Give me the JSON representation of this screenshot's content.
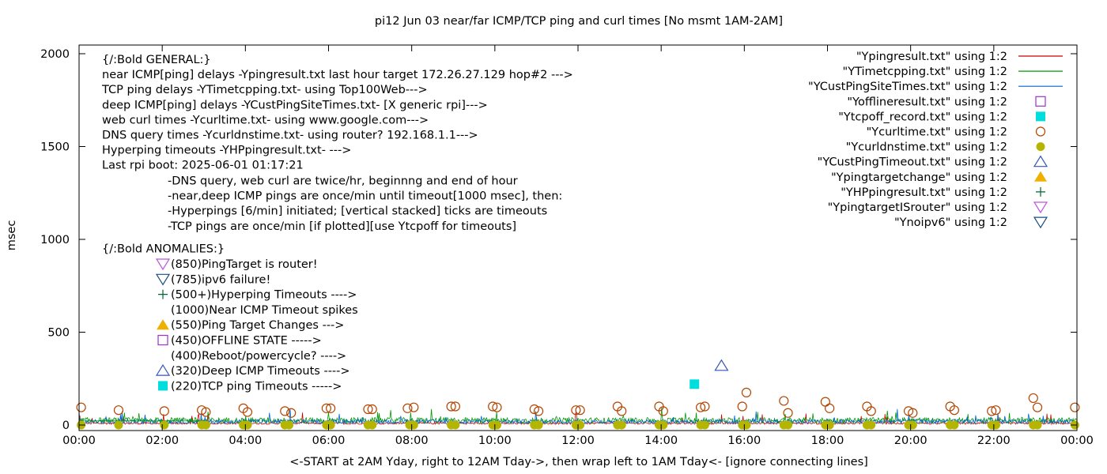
{
  "chart_data": {
    "type": "line",
    "title": "pi12 Jun 03  near/far ICMP/TCP ping and curl times [No msmt 1AM-2AM]",
    "xlabel": "<-START at 2AM Yday, right to 12AM Tday->, then wrap left to 1AM Tday<- [ignore connecting lines]",
    "ylabel": "msec",
    "xlim": [
      0,
      24
    ],
    "ylim": [
      0,
      2060
    ],
    "x_ticks": [
      "00:00",
      "02:00",
      "04:00",
      "06:00",
      "08:00",
      "10:00",
      "12:00",
      "14:00",
      "16:00",
      "18:00",
      "20:00",
      "22:00",
      "00:00"
    ],
    "y_ticks": [
      "0",
      "500",
      "1000",
      "1500",
      "2000"
    ],
    "legend_position": "top-right",
    "series": [
      {
        "name": "\"Ypingresult.txt\" using 1:2",
        "style": "line",
        "color": "#cc0000"
      },
      {
        "name": "\"YTimetcpping.txt\" using 1:2",
        "style": "line",
        "color": "#009900"
      },
      {
        "name": "\"YCustPingSiteTimes.txt\" using 1:2",
        "style": "line",
        "color": "#0066cc"
      },
      {
        "name": "\"Yofflineresult.txt\" using 1:2",
        "style": "open-square",
        "color": "#9933cc",
        "points": []
      },
      {
        "name": "\"Ytcpoff_record.txt\" using 1:2",
        "style": "filled-square",
        "color": "#00dddd",
        "points": [
          [
            14.8,
            220
          ]
        ]
      },
      {
        "name": "\"Ycurltime.txt\" using 1:2",
        "style": "open-circle",
        "color": "#b34400",
        "points": [
          [
            0.05,
            95
          ],
          [
            0.95,
            80
          ],
          [
            2.05,
            75
          ],
          [
            2.95,
            80
          ],
          [
            3.05,
            70
          ],
          [
            3.95,
            90
          ],
          [
            4.05,
            70
          ],
          [
            4.95,
            75
          ],
          [
            5.1,
            65
          ],
          [
            5.95,
            90
          ],
          [
            6.05,
            90
          ],
          [
            6.95,
            85
          ],
          [
            7.05,
            85
          ],
          [
            7.9,
            90
          ],
          [
            8.05,
            95
          ],
          [
            8.95,
            100
          ],
          [
            9.05,
            100
          ],
          [
            9.95,
            100
          ],
          [
            10.05,
            95
          ],
          [
            10.95,
            85
          ],
          [
            11.05,
            75
          ],
          [
            11.95,
            80
          ],
          [
            12.05,
            80
          ],
          [
            12.95,
            100
          ],
          [
            13.05,
            75
          ],
          [
            13.95,
            100
          ],
          [
            14.05,
            75
          ],
          [
            14.95,
            95
          ],
          [
            15.05,
            100
          ],
          [
            15.95,
            100
          ],
          [
            16.05,
            175
          ],
          [
            16.95,
            130
          ],
          [
            17.05,
            65
          ],
          [
            17.95,
            125
          ],
          [
            18.05,
            90
          ],
          [
            18.95,
            100
          ],
          [
            19.05,
            75
          ],
          [
            19.95,
            75
          ],
          [
            20.05,
            65
          ],
          [
            20.95,
            100
          ],
          [
            21.05,
            80
          ],
          [
            21.95,
            75
          ],
          [
            22.05,
            80
          ],
          [
            22.95,
            145
          ],
          [
            23.05,
            95
          ],
          [
            23.95,
            95
          ]
        ]
      },
      {
        "name": "\"Ycurldnstime.txt\" using 1:2",
        "style": "filled-circle",
        "color": "#b5b500",
        "points": [
          [
            0.05,
            0
          ],
          [
            0.95,
            0
          ],
          [
            2.05,
            0
          ],
          [
            2.95,
            0
          ],
          [
            3.05,
            0
          ],
          [
            3.95,
            0
          ],
          [
            4.05,
            0
          ],
          [
            4.95,
            0
          ],
          [
            5.05,
            0
          ],
          [
            5.95,
            0
          ],
          [
            6.05,
            0
          ],
          [
            6.95,
            0
          ],
          [
            7.05,
            0
          ],
          [
            7.95,
            0
          ],
          [
            8.05,
            0
          ],
          [
            8.95,
            0
          ],
          [
            9.05,
            0
          ],
          [
            9.95,
            0
          ],
          [
            10.05,
            0
          ],
          [
            10.95,
            0
          ],
          [
            11.05,
            0
          ],
          [
            11.95,
            0
          ],
          [
            12.05,
            0
          ],
          [
            12.95,
            0
          ],
          [
            13.05,
            0
          ],
          [
            13.95,
            0
          ],
          [
            14.05,
            0
          ],
          [
            14.95,
            0
          ],
          [
            15.05,
            0
          ],
          [
            15.95,
            0
          ],
          [
            16.05,
            0
          ],
          [
            16.95,
            0
          ],
          [
            17.05,
            0
          ],
          [
            17.95,
            0
          ],
          [
            18.05,
            0
          ],
          [
            18.95,
            0
          ],
          [
            19.05,
            0
          ],
          [
            19.95,
            0
          ],
          [
            20.05,
            0
          ],
          [
            20.95,
            0
          ],
          [
            21.05,
            0
          ],
          [
            21.95,
            0
          ],
          [
            22.05,
            0
          ],
          [
            22.95,
            0
          ],
          [
            23.05,
            0
          ],
          [
            23.95,
            0
          ]
        ]
      },
      {
        "name": "\"YCustPingTimeout.txt\" using 1:2",
        "style": "open-triangle-up",
        "color": "#3355bb",
        "points": [
          [
            15.45,
            320
          ]
        ]
      },
      {
        "name": "\"Ypingtargetchange\" using 1:2",
        "style": "filled-triangle-up",
        "color": "#f0b000",
        "points": []
      },
      {
        "name": "\"YHPpingresult.txt\" using 1:2",
        "style": "plus",
        "color": "#006633",
        "points": []
      },
      {
        "name": "\"YpingtargetISrouter\" using 1:2",
        "style": "open-triangle-down",
        "color": "#bb55dd",
        "points": []
      },
      {
        "name": "\"Ynoipv6\" using 1:2",
        "style": "open-triangle-down",
        "color": "#1a4d80",
        "points": []
      }
    ]
  },
  "notes": {
    "general": [
      "{/:Bold GENERAL:}",
      "near ICMP[ping] delays -Ypingresult.txt last hour target 172.26.27.129 hop#2 --->",
      "TCP ping delays -YTimetcpping.txt- using Top100Web--->",
      "deep ICMP[ping] delays -YCustPingSiteTimes.txt- [X generic rpi]--->",
      "web curl times -Ycurltime.txt- using www.google.com--->",
      "DNS query times -Ycurldnstime.txt- using router? 192.168.1.1--->",
      "Hyperping timeouts -YHPpingresult.txt- --->",
      "Last rpi boot: 2025-06-01 01:17:21"
    ],
    "indented": [
      "-DNS query, web curl are twice/hr, beginnng and end of hour",
      "-near,deep ICMP pings are once/min until timeout[1000 msec], then:",
      "  -Hyperpings [6/min] initiated; [vertical stacked] ticks are timeouts",
      "-TCP pings are once/min [if plotted][use Ytcpoff for timeouts]"
    ],
    "anomalies_title": "{/:Bold ANOMALIES:}",
    "anomalies": [
      {
        "symbol": "open-triangle-down",
        "color": "#bb55dd",
        "text": "(850)PingTarget is router!"
      },
      {
        "symbol": "open-triangle-down",
        "color": "#1a4d80",
        "text": "(785)ipv6 failure!"
      },
      {
        "symbol": "plus",
        "color": "#006633",
        "text": "(500+)Hyperping Timeouts ---->"
      },
      {
        "symbol": "none",
        "color": "",
        "text": "(1000)Near ICMP Timeout spikes"
      },
      {
        "symbol": "filled-triangle-up",
        "color": "#f0b000",
        "text": "(550)Ping Target Changes --->"
      },
      {
        "symbol": "open-square",
        "color": "#9933cc",
        "text": "(450)OFFLINE STATE ----->"
      },
      {
        "symbol": "none",
        "color": "",
        "text": "(400)Reboot/powercycle? ---->"
      },
      {
        "symbol": "open-triangle-up",
        "color": "#3355bb",
        "text": "(320)Deep ICMP Timeouts ---->"
      },
      {
        "symbol": "filled-square",
        "color": "#00dddd",
        "text": "(220)TCP ping Timeouts ----->"
      }
    ]
  }
}
